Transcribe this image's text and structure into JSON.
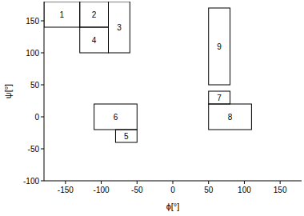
{
  "chart_data": {
    "type": "region",
    "x_label": "ϕ[°]",
    "y_label": "ψ[°]",
    "xlim": [
      -180,
      180
    ],
    "ylim": [
      -100,
      180
    ],
    "xticks": [
      -150,
      -100,
      -50,
      0,
      50,
      100,
      150
    ],
    "yticks": [
      -100,
      -50,
      0,
      50,
      100,
      150
    ],
    "regions": [
      {
        "label": "1",
        "xmin": -180,
        "xmax": -130,
        "ymin": 140,
        "ymax": 180
      },
      {
        "label": "2",
        "xmin": -130,
        "xmax": -90,
        "ymin": 140,
        "ymax": 180
      },
      {
        "label": "3",
        "xmin": -90,
        "xmax": -60,
        "ymin": 100,
        "ymax": 180
      },
      {
        "label": "4",
        "xmin": -130,
        "xmax": -90,
        "ymin": 100,
        "ymax": 140
      },
      {
        "label": "5",
        "xmin": -80,
        "xmax": -50,
        "ymin": -40,
        "ymax": -20
      },
      {
        "label": "6",
        "xmin": -110,
        "xmax": -50,
        "ymin": -20,
        "ymax": 20
      },
      {
        "label": "7",
        "xmin": 50,
        "xmax": 80,
        "ymin": 20,
        "ymax": 40
      },
      {
        "label": "8",
        "xmin": 50,
        "xmax": 110,
        "ymin": -20,
        "ymax": 20
      },
      {
        "label": "9",
        "xmin": 50,
        "xmax": 80,
        "ymin": 50,
        "ymax": 170
      }
    ],
    "color": "#000000"
  }
}
